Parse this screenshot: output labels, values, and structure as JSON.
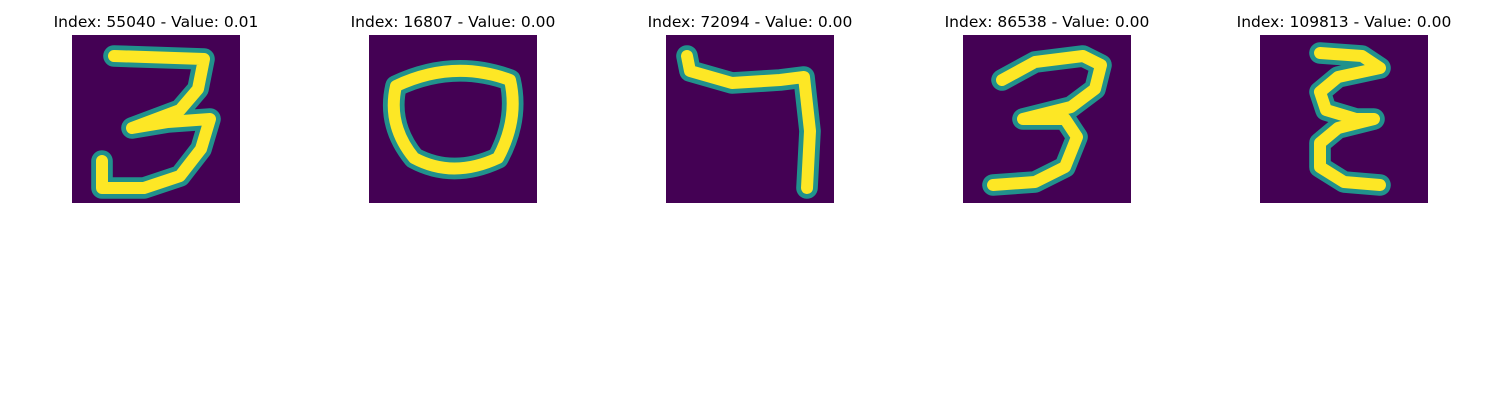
{
  "colormap": {
    "name": "viridis",
    "background": "#440154",
    "mid": "#21918c",
    "high": "#fde725"
  },
  "panels": [
    {
      "index": "55040",
      "value": "0.01",
      "title": "Index: 55040 - Value: 0.01",
      "digit_shown": "3"
    },
    {
      "index": "16807",
      "value": "0.00",
      "title": "Index: 16807 - Value: 0.00",
      "digit_shown": "0"
    },
    {
      "index": "72094",
      "value": "0.00",
      "title": "Index: 72094 - Value: 0.00",
      "digit_shown": "7"
    },
    {
      "index": "86538",
      "value": "0.00",
      "title": "Index: 86538 - Value: 0.00",
      "digit_shown": "3"
    },
    {
      "index": "109813",
      "value": "0.00",
      "title": "Index: 109813 - Value: 0.00",
      "digit_shown": "3 (mirrored)"
    }
  ]
}
